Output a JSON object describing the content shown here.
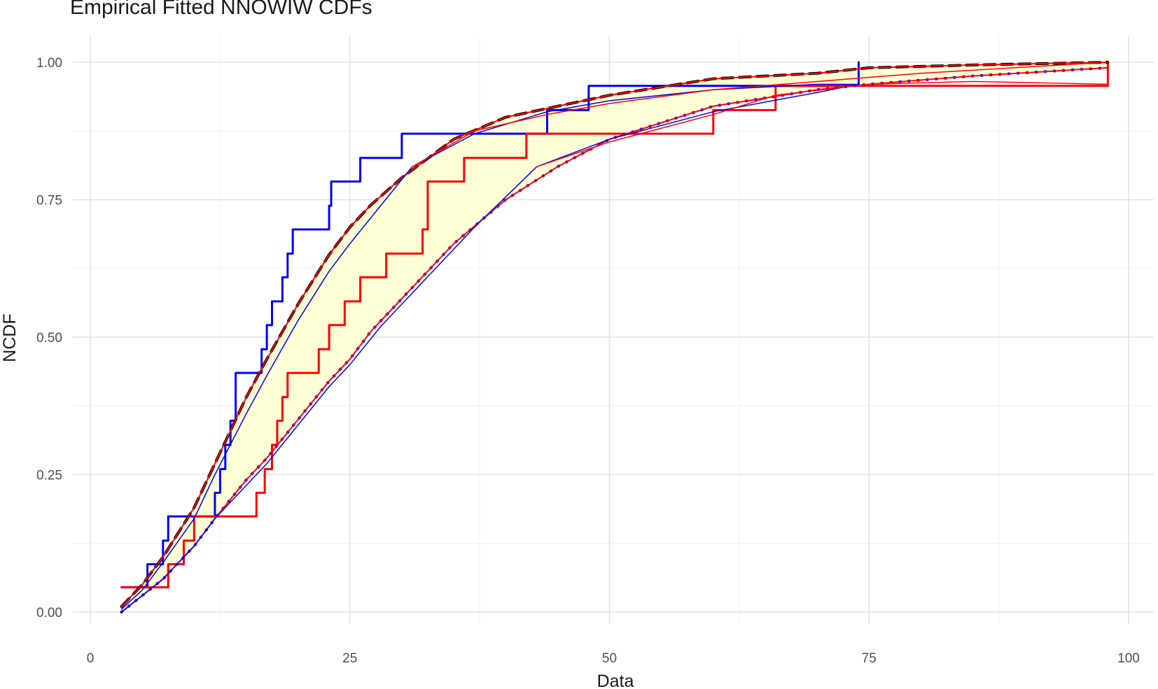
{
  "chart_data": {
    "type": "line",
    "title": "Empirical Fitted NNOWIW CDFs",
    "xlabel": "Data",
    "ylabel": "NCDF",
    "xlim": [
      -1,
      101
    ],
    "ylim": [
      -0.02,
      1.04
    ],
    "x_ticks": [
      0,
      25,
      50,
      75,
      100
    ],
    "x_tick_labels": [
      "0",
      "25",
      "50",
      "75",
      "100"
    ],
    "y_ticks": [
      0,
      0.25,
      0.5,
      0.75,
      1
    ],
    "y_tick_labels": [
      "0.00",
      "0.25",
      "0.50",
      "0.75",
      "1.00"
    ],
    "grid": true,
    "legend": "none",
    "colors": {
      "blue": "#0000ff",
      "red": "#ff0000",
      "black": "#000000",
      "band_fill": "#fdfdd6"
    },
    "band": {
      "x": [
        3,
        5,
        7,
        10,
        12,
        15,
        17,
        20,
        23,
        25,
        27,
        30,
        35,
        40,
        45,
        50,
        60,
        70,
        75,
        85,
        98
      ],
      "upper": [
        0.01,
        0.05,
        0.1,
        0.19,
        0.27,
        0.39,
        0.46,
        0.56,
        0.65,
        0.7,
        0.74,
        0.79,
        0.86,
        0.9,
        0.92,
        0.94,
        0.97,
        0.98,
        0.99,
        0.995,
        1.0
      ],
      "lower": [
        0.0,
        0.03,
        0.06,
        0.12,
        0.17,
        0.24,
        0.28,
        0.35,
        0.42,
        0.46,
        0.51,
        0.57,
        0.67,
        0.75,
        0.81,
        0.86,
        0.92,
        0.95,
        0.96,
        0.975,
        0.99
      ]
    },
    "series": [
      {
        "kind": "step",
        "color": "#0000ff",
        "width": 3,
        "x": [
          3,
          5.5,
          7,
          7.5,
          10,
          12,
          12.5,
          13,
          13.5,
          14,
          16.5,
          17,
          17.5,
          18.5,
          19,
          19.5,
          23,
          23.2,
          26,
          30,
          36,
          44,
          48,
          74
        ],
        "y": [
          0.045,
          0.087,
          0.13,
          0.174,
          0.174,
          0.217,
          0.26,
          0.304,
          0.348,
          0.435,
          0.478,
          0.522,
          0.565,
          0.609,
          0.652,
          0.696,
          0.739,
          0.783,
          0.826,
          0.87,
          0.87,
          0.913,
          0.957,
          1.0
        ]
      },
      {
        "kind": "step",
        "color": "#ff0000",
        "width": 3,
        "x": [
          3,
          5,
          7.5,
          9,
          10,
          16,
          16.8,
          17.5,
          18,
          18.5,
          19,
          19.5,
          22,
          23,
          24.5,
          26,
          28.5,
          32,
          32.5,
          36,
          42,
          60,
          66,
          74,
          98
        ],
        "y": [
          0.045,
          0.045,
          0.087,
          0.13,
          0.174,
          0.217,
          0.26,
          0.304,
          0.348,
          0.391,
          0.435,
          0.435,
          0.478,
          0.522,
          0.565,
          0.609,
          0.652,
          0.696,
          0.783,
          0.826,
          0.87,
          0.913,
          0.957,
          0.957,
          1.0
        ]
      },
      {
        "kind": "line",
        "color": "#000000",
        "width": 4,
        "dash": "16,9",
        "x": [
          3,
          5,
          7,
          10,
          12,
          15,
          17,
          20,
          23,
          25,
          27,
          30,
          35,
          40,
          45,
          50,
          60,
          70,
          75,
          85,
          98
        ],
        "y": [
          0.01,
          0.05,
          0.1,
          0.19,
          0.27,
          0.39,
          0.46,
          0.56,
          0.65,
          0.7,
          0.74,
          0.79,
          0.86,
          0.9,
          0.92,
          0.94,
          0.97,
          0.98,
          0.99,
          0.995,
          1.0
        ]
      },
      {
        "kind": "line",
        "color": "#ff0000",
        "width": 2,
        "x": [
          3,
          5,
          7,
          10,
          12,
          15,
          17,
          20,
          23,
          25,
          27,
          30,
          35,
          40,
          45,
          50,
          60,
          70,
          75,
          85,
          98
        ],
        "y": [
          0.01,
          0.05,
          0.1,
          0.19,
          0.27,
          0.39,
          0.46,
          0.56,
          0.65,
          0.7,
          0.74,
          0.79,
          0.86,
          0.9,
          0.92,
          0.94,
          0.97,
          0.98,
          0.99,
          0.995,
          1.0
        ]
      },
      {
        "kind": "line",
        "color": "#0000ff",
        "width": 4,
        "dash": "1,12",
        "x": [
          3,
          5,
          7,
          10,
          12,
          15,
          17,
          20,
          23,
          25,
          27,
          30,
          35,
          40,
          45,
          50,
          60,
          70,
          75,
          85,
          98
        ],
        "y": [
          0.0,
          0.03,
          0.06,
          0.12,
          0.17,
          0.24,
          0.28,
          0.35,
          0.42,
          0.46,
          0.51,
          0.57,
          0.67,
          0.75,
          0.81,
          0.86,
          0.92,
          0.95,
          0.96,
          0.975,
          0.99
        ]
      },
      {
        "kind": "line",
        "color": "#ff0000",
        "width": 2,
        "x": [
          3,
          5,
          7,
          10,
          12,
          15,
          17,
          20,
          23,
          25,
          27,
          30,
          35,
          40,
          45,
          50,
          60,
          70,
          75,
          85,
          98
        ],
        "y": [
          0.0,
          0.03,
          0.06,
          0.12,
          0.17,
          0.24,
          0.28,
          0.35,
          0.42,
          0.46,
          0.51,
          0.57,
          0.67,
          0.75,
          0.81,
          0.86,
          0.92,
          0.95,
          0.96,
          0.975,
          0.99
        ]
      },
      {
        "kind": "line",
        "color": "#0000ff",
        "width": 1.5,
        "x": [
          3,
          5,
          7,
          10,
          12,
          15,
          17,
          20,
          23,
          25,
          28,
          31,
          37,
          44,
          50,
          60,
          70,
          74
        ],
        "y": [
          0.005,
          0.04,
          0.09,
          0.17,
          0.25,
          0.36,
          0.43,
          0.53,
          0.62,
          0.67,
          0.74,
          0.81,
          0.87,
          0.91,
          0.93,
          0.95,
          0.96,
          0.96
        ]
      },
      {
        "kind": "line",
        "color": "#0000ff",
        "width": 1.5,
        "x": [
          3,
          5,
          7,
          10,
          12,
          15,
          17,
          20,
          23,
          25,
          28,
          31,
          37,
          43,
          50,
          60,
          70,
          74
        ],
        "y": [
          0.0,
          0.03,
          0.06,
          0.12,
          0.17,
          0.23,
          0.27,
          0.34,
          0.41,
          0.45,
          0.52,
          0.58,
          0.7,
          0.81,
          0.86,
          0.91,
          0.945,
          0.96
        ]
      },
      {
        "kind": "line",
        "color": "#ff0000",
        "width": 1.5,
        "x": [
          31,
          37,
          44,
          50,
          60,
          70,
          80,
          98
        ],
        "y": [
          0.81,
          0.875,
          0.905,
          0.925,
          0.95,
          0.965,
          0.98,
          1.0
        ]
      },
      {
        "kind": "line",
        "color": "#ff0000",
        "width": 1.5,
        "x": [
          43,
          50,
          60,
          66,
          75,
          85,
          98
        ],
        "y": [
          0.81,
          0.855,
          0.905,
          0.94,
          0.96,
          0.965,
          0.96
        ]
      }
    ]
  }
}
